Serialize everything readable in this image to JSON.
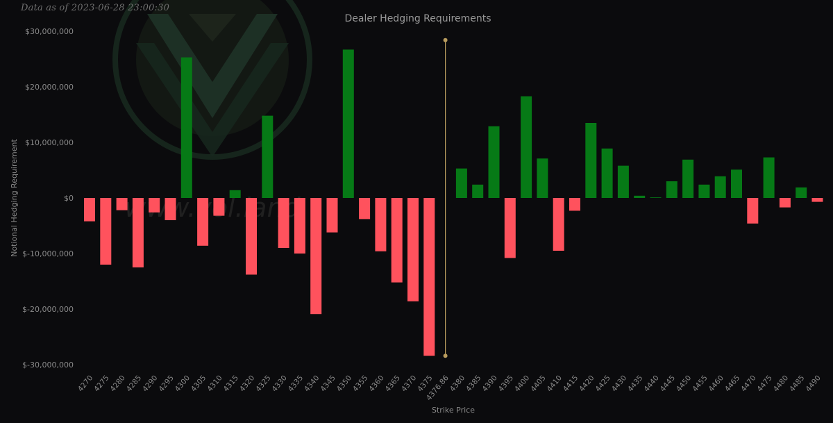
{
  "stamp": "Data as of 2023-06-28 23:00:30",
  "watermark_text": "www.vol.land",
  "colors": {
    "background": "#0b0b0d",
    "positive": "#067a16",
    "negative": "#ff525d",
    "marker": "#b99c5e",
    "text": "#8a8a8a",
    "title": "#9a9a9a",
    "watermark": "#27332c"
  },
  "chart_data": {
    "type": "bar",
    "title": "Dealer Hedging Requirements",
    "xlabel": "Strike Price",
    "ylabel": "Notional Hedging Requirement",
    "ylim": [
      -30000000,
      30000000
    ],
    "yticks": [
      30000000,
      20000000,
      10000000,
      0,
      -10000000,
      -20000000,
      -30000000
    ],
    "ytick_labels": [
      "$30,000,000",
      "$20,000,000",
      "$10,000,000",
      "$0",
      "$-10,000,000",
      "$-20,000,000",
      "$-30,000,000"
    ],
    "grid": false,
    "legend": "none",
    "categories": [
      "4270",
      "4275",
      "4280",
      "4285",
      "4290",
      "4295",
      "4300",
      "4305",
      "4310",
      "4315",
      "4320",
      "4325",
      "4330",
      "4335",
      "4340",
      "4345",
      "4350",
      "4355",
      "4360",
      "4365",
      "4370",
      "4375",
      "4376.86",
      "4380",
      "4385",
      "4390",
      "4395",
      "4400",
      "4405",
      "4410",
      "4415",
      "4420",
      "4425",
      "4430",
      "4435",
      "4440",
      "4445",
      "4450",
      "4455",
      "4460",
      "4465",
      "4470",
      "4475",
      "4480",
      "4485",
      "4490"
    ],
    "values": [
      -4200000,
      -12000000,
      -2200000,
      -12500000,
      -2600000,
      -4000000,
      25300000,
      -8600000,
      -3200000,
      1400000,
      -13800000,
      14800000,
      -9000000,
      -10000000,
      -20900000,
      -6200000,
      26700000,
      -3800000,
      -9600000,
      -15200000,
      -18600000,
      -28400000,
      null,
      5300000,
      2400000,
      12900000,
      -10800000,
      18300000,
      7100000,
      -9500000,
      -2300000,
      13500000,
      8900000,
      5800000,
      400000,
      100000,
      3000000,
      6900000,
      2400000,
      3900000,
      5100000,
      -4600000,
      7300000,
      -1700000,
      1900000,
      -700000
    ],
    "spot_marker": {
      "x": "4376.86",
      "y_range": [
        28400000,
        -28400000
      ]
    }
  }
}
